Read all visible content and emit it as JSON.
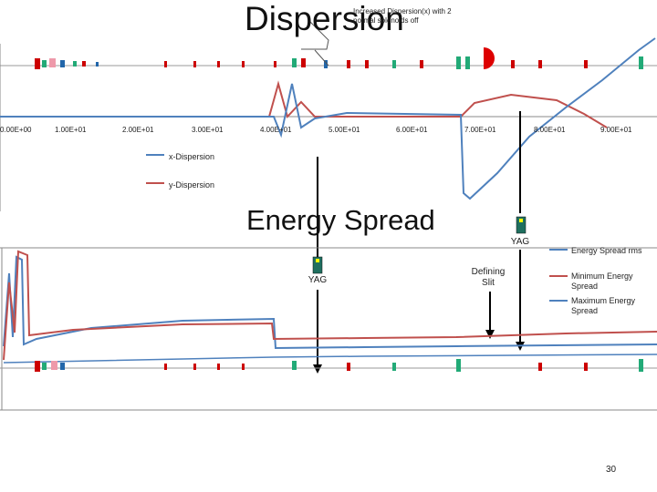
{
  "slide": {
    "title": "Dispersion",
    "subtitle": "Energy Spread",
    "note": "Increased Dispersion(x) with 2 normal solenoids off",
    "page_number": "30"
  },
  "dispersion_chart": {
    "x_ticks": [
      "0.00E+00",
      "1.00E+01",
      "2.00E+01",
      "3.00E+01",
      "4.00E+01",
      "5.00E+01",
      "6.00E+01",
      "7.00E+01",
      "8.00E+01",
      "9.00E+01"
    ],
    "legend": [
      "x-Dispersion",
      "y-Dispersion"
    ]
  },
  "energy_chart": {
    "legend": [
      "Energy Spread rms",
      "Minimum Energy Spread",
      "Maximum Energy Spread"
    ]
  },
  "labels": {
    "yag_left": "YAG",
    "yag_right": "YAG",
    "defining_slit": "Defining Slit"
  },
  "colors": {
    "x_dispersion": "#4f81bd",
    "y_dispersion": "#c0504d",
    "rms": "#4f81bd",
    "min": "#c0504d",
    "max": "#4f81bd"
  }
}
